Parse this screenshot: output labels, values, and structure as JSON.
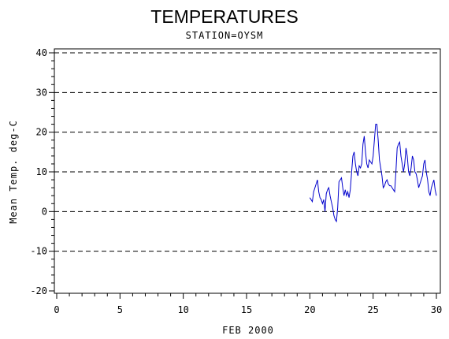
{
  "chart_data": {
    "type": "line",
    "title": "TEMPERATURES",
    "subtitle": "STATION=OYSM",
    "xlabel": "FEB 2000",
    "ylabel": "Mean Temp. deg-C",
    "xlim": [
      0,
      30
    ],
    "ylim": [
      -20,
      40
    ],
    "xticks": [
      0,
      5,
      10,
      15,
      20,
      25,
      30
    ],
    "yticks": [
      -20,
      -10,
      0,
      10,
      20,
      30,
      40
    ],
    "grid": "horizontal dashed at major y ticks",
    "colors": {
      "series": "#0000cc",
      "axis": "#000000",
      "grid": "#000000"
    },
    "series": [
      {
        "x": [
          20.0,
          20.1,
          20.2,
          20.3,
          20.4,
          20.5,
          20.6,
          20.7,
          20.8,
          20.9,
          21.0,
          21.1,
          21.2,
          21.3,
          21.4,
          21.5,
          21.6,
          21.7,
          21.8,
          21.9,
          22.0,
          22.1,
          22.2,
          22.3,
          22.4,
          22.5,
          22.6,
          22.7,
          22.8,
          22.9,
          23.0,
          23.1,
          23.2,
          23.3,
          23.4,
          23.5,
          23.6,
          23.7,
          23.8,
          23.9,
          24.0,
          24.1,
          24.2,
          24.3,
          24.4,
          24.5,
          24.6,
          24.7,
          24.8,
          24.9,
          25.0,
          25.1,
          25.2,
          25.3,
          25.4,
          25.5,
          25.6,
          25.7,
          25.8,
          25.9,
          26.0,
          26.1,
          26.2,
          26.3,
          26.4,
          26.5,
          26.6,
          26.7,
          26.8,
          26.9,
          27.0,
          27.1,
          27.2,
          27.3,
          27.4,
          27.5,
          27.6,
          27.7,
          27.8,
          27.9,
          28.0,
          28.1,
          28.2,
          28.3,
          28.4,
          28.5,
          28.6,
          28.7,
          28.8,
          28.9,
          29.0,
          29.1,
          29.2,
          29.3,
          29.4,
          29.5,
          29.6,
          29.7,
          29.8,
          29.9,
          30.0
        ],
        "y": [
          3.5,
          3.0,
          2.5,
          5.0,
          6.0,
          7.0,
          8.0,
          5.0,
          3.5,
          3.0,
          2.0,
          3.0,
          0.0,
          4.5,
          5.5,
          6.0,
          4.0,
          2.5,
          1.0,
          -1.0,
          -2.0,
          -2.5,
          1.0,
          7.5,
          8.0,
          8.5,
          6.0,
          4.0,
          5.5,
          4.0,
          5.0,
          3.5,
          5.5,
          10.0,
          14.0,
          15.0,
          12.0,
          10.0,
          9.0,
          11.5,
          11.0,
          12.0,
          17.0,
          19.0,
          15.0,
          12.0,
          11.0,
          13.0,
          12.5,
          12.0,
          14.0,
          18.0,
          22.0,
          22.0,
          18.0,
          13.0,
          11.0,
          9.0,
          6.0,
          6.5,
          7.5,
          8.0,
          7.0,
          6.5,
          6.5,
          6.0,
          5.5,
          5.0,
          10.0,
          16.0,
          17.0,
          17.5,
          14.0,
          12.0,
          10.0,
          12.0,
          16.0,
          14.0,
          10.0,
          9.0,
          11.0,
          14.0,
          13.0,
          10.0,
          9.5,
          8.0,
          6.0,
          7.0,
          8.0,
          9.0,
          12.0,
          13.0,
          10.0,
          8.0,
          5.0,
          4.0,
          6.0,
          7.0,
          8.0,
          5.5,
          4.0
        ]
      }
    ]
  }
}
